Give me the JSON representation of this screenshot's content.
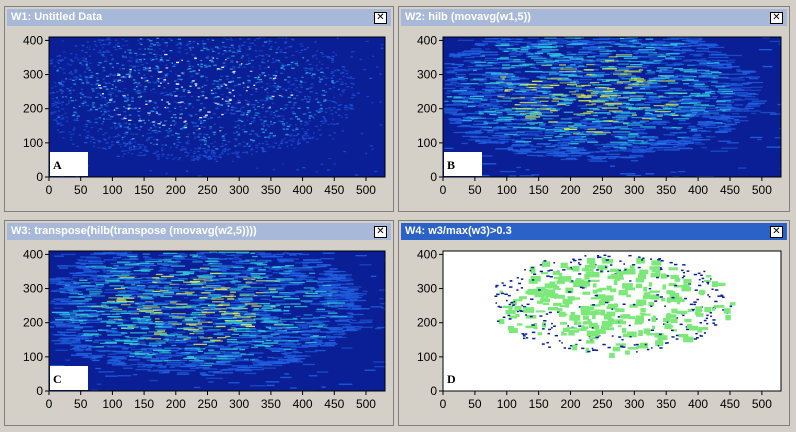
{
  "windows": [
    {
      "id": "w1",
      "title": "W1: Untitled Data",
      "panel_label": "A",
      "active": false,
      "style": "heatmap",
      "colors": {
        "background": "#0a1f96",
        "low": "#1b4fd8",
        "mid": "#27a6e6",
        "high": "#ffffff"
      }
    },
    {
      "id": "w2",
      "title": "W2: hilb (movavg(w1,5))",
      "panel_label": "B",
      "active": false,
      "style": "heatmap",
      "colors": {
        "background": "#0a1f96",
        "low": "#1f5fe0",
        "mid": "#2fc0e0",
        "high": "#c8e85a"
      }
    },
    {
      "id": "w3",
      "title": "W3: transpose(hilb(transpose (movavg(w2,5))))",
      "panel_label": "C",
      "active": false,
      "style": "heatmap",
      "colors": {
        "background": "#0a1f96",
        "low": "#2060e0",
        "mid": "#30c6d8",
        "high": "#d8e85a"
      }
    },
    {
      "id": "w4",
      "title": "W4: w3/max(w3)>0.3",
      "panel_label": "D",
      "active": true,
      "style": "threshold",
      "colors": {
        "background": "#ffffff",
        "low": "#0a1f96",
        "mid": "#7de87a",
        "high": "#7de87a"
      }
    }
  ],
  "axes": {
    "x_ticks": [
      "0",
      "50",
      "100",
      "150",
      "200",
      "250",
      "300",
      "350",
      "400",
      "450",
      "500"
    ],
    "y_ticks": [
      "0",
      "100",
      "200",
      "300",
      "400"
    ],
    "xlim": [
      0,
      530
    ],
    "ylim": [
      0,
      410
    ]
  },
  "close_glyph": "✕"
}
